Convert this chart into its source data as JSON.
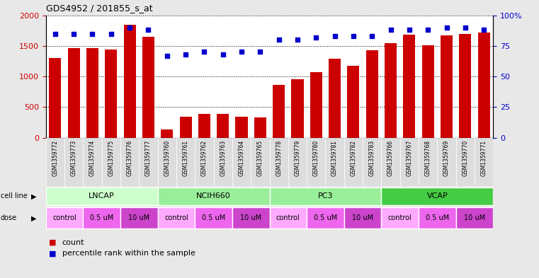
{
  "title": "GDS4952 / 201855_s_at",
  "samples": [
    "GSM1359772",
    "GSM1359773",
    "GSM1359774",
    "GSM1359775",
    "GSM1359776",
    "GSM1359777",
    "GSM1359760",
    "GSM1359761",
    "GSM1359762",
    "GSM1359763",
    "GSM1359764",
    "GSM1359765",
    "GSM1359778",
    "GSM1359779",
    "GSM1359780",
    "GSM1359781",
    "GSM1359782",
    "GSM1359783",
    "GSM1359766",
    "GSM1359767",
    "GSM1359768",
    "GSM1359769",
    "GSM1359770",
    "GSM1359771"
  ],
  "counts": [
    1300,
    1460,
    1460,
    1440,
    1840,
    1650,
    130,
    340,
    390,
    390,
    340,
    330,
    860,
    950,
    1070,
    1290,
    1180,
    1430,
    1550,
    1680,
    1510,
    1670,
    1690,
    1720
  ],
  "percentiles": [
    85,
    85,
    85,
    85,
    90,
    88,
    67,
    68,
    70,
    68,
    70,
    70,
    80,
    80,
    82,
    83,
    83,
    83,
    88,
    88,
    88,
    90,
    90,
    88
  ],
  "bar_color": "#cc0000",
  "dot_color": "#0000cc",
  "ylim_left": [
    0,
    2000
  ],
  "ylim_right": [
    0,
    100
  ],
  "yticks_left": [
    0,
    500,
    1000,
    1500,
    2000
  ],
  "yticks_right": [
    0,
    25,
    50,
    75,
    100
  ],
  "yticklabels_right": [
    "0",
    "25",
    "50",
    "75",
    "100%"
  ],
  "cell_lines": [
    {
      "name": "LNCAP",
      "start": 0,
      "end": 6,
      "color": "#ccffcc"
    },
    {
      "name": "NCIH660",
      "start": 6,
      "end": 12,
      "color": "#99ee99"
    },
    {
      "name": "PC3",
      "start": 12,
      "end": 18,
      "color": "#99ee99"
    },
    {
      "name": "VCAP",
      "start": 18,
      "end": 24,
      "color": "#44cc44"
    }
  ],
  "doses": [
    {
      "label": "control",
      "start": 0,
      "end": 2
    },
    {
      "label": "0.5 uM",
      "start": 2,
      "end": 4
    },
    {
      "label": "10 uM",
      "start": 4,
      "end": 6
    },
    {
      "label": "control",
      "start": 6,
      "end": 8
    },
    {
      "label": "0.5 uM",
      "start": 8,
      "end": 10
    },
    {
      "label": "10 uM",
      "start": 10,
      "end": 12
    },
    {
      "label": "control",
      "start": 12,
      "end": 14
    },
    {
      "label": "0.5 uM",
      "start": 14,
      "end": 16
    },
    {
      "label": "10 uM",
      "start": 16,
      "end": 18
    },
    {
      "label": "control",
      "start": 18,
      "end": 20
    },
    {
      "label": "0.5 uM",
      "start": 20,
      "end": 22
    },
    {
      "label": "10 uM",
      "start": 22,
      "end": 24
    }
  ],
  "dose_colors": {
    "control": "#ffaaff",
    "0.5 uM": "#ee66ee",
    "10 uM": "#cc44cc"
  },
  "bg_color": "#e8e8e8",
  "plot_bg": "#ffffff",
  "legend_count_color": "#cc0000",
  "legend_percentile_color": "#0000cc"
}
